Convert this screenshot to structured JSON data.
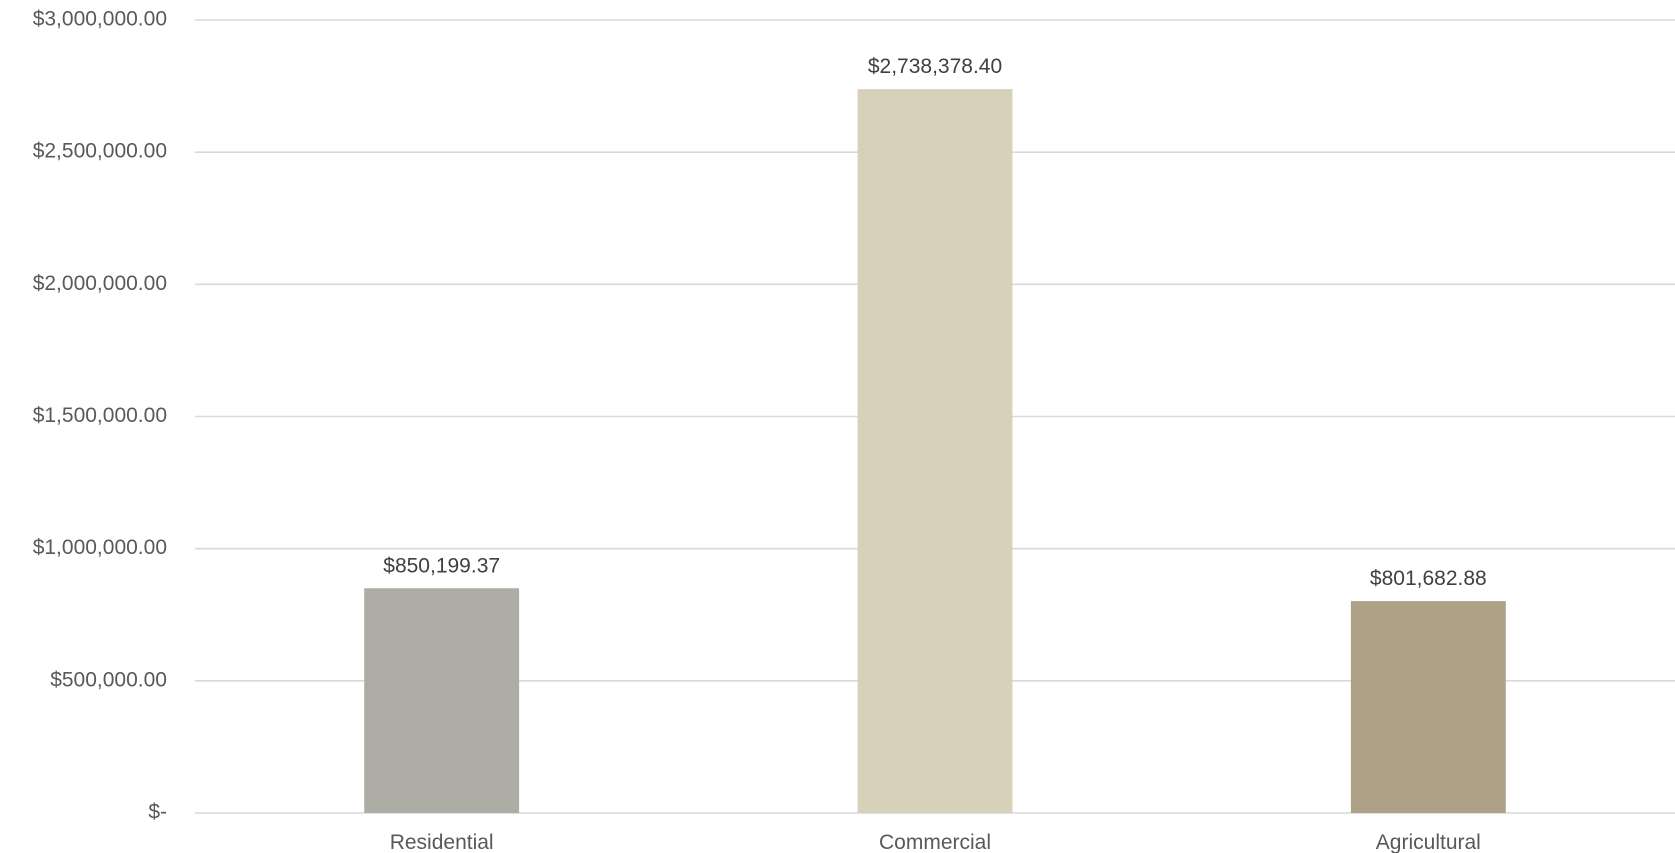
{
  "chart_data": {
    "type": "bar",
    "title": "",
    "xlabel": "",
    "ylabel": "",
    "categories": [
      "Residential",
      "Commercial",
      "Agricultural"
    ],
    "series": [
      {
        "values": [
          850199.37,
          2738378.4,
          801682.88
        ],
        "colors": [
          "#adada5",
          "#d8d1b9",
          "#ada285"
        ]
      }
    ],
    "data_labels": [
      "$850,199.37",
      "$2,738,378.40",
      "$801,682.88"
    ],
    "ylim": [
      0,
      3000000
    ],
    "yticks": [
      0,
      500000,
      1000000,
      1500000,
      2000000,
      2500000,
      3000000
    ],
    "ytick_labels": [
      "$-",
      "$500,000.00",
      "$1,000,000.00",
      "$1,500,000.00",
      "$2,000,000.00",
      "$2,500,000.00",
      "$3,000,000.00"
    ],
    "grid": true,
    "legend": "none"
  }
}
